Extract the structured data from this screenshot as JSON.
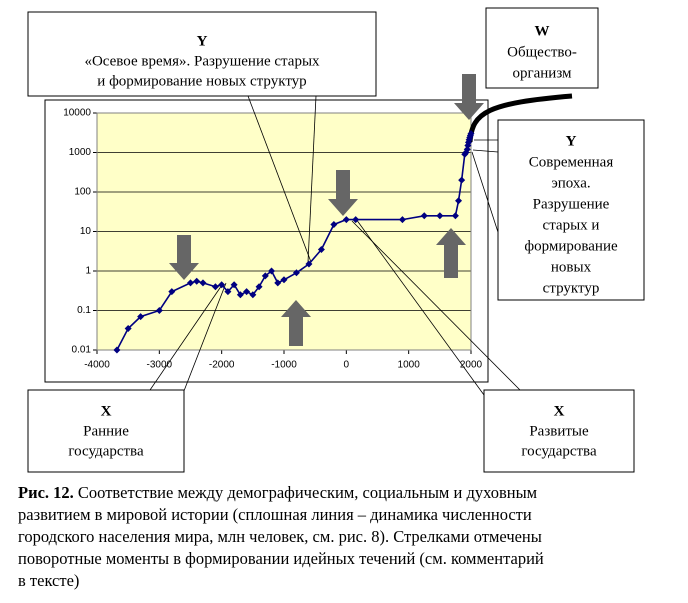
{
  "chart_data": {
    "type": "line",
    "log_scale": true,
    "grid": true,
    "color": "#000080",
    "x": [
      -3680,
      -3500,
      -3300,
      -3000,
      -2800,
      -2500,
      -2400,
      -2300,
      -2100,
      -2000,
      -1900,
      -1800,
      -1700,
      -1600,
      -1500,
      -1400,
      -1300,
      -1200,
      -1100,
      -1000,
      -800,
      -600,
      -400,
      -200,
      0,
      150,
      900,
      1250,
      1500,
      1750,
      1800,
      1850,
      1900,
      1920,
      1940,
      1950,
      1960,
      1970,
      1980,
      1990,
      2000
    ],
    "values": [
      0.01,
      0.035,
      0.07,
      0.1,
      0.3,
      0.5,
      0.55,
      0.5,
      0.4,
      0.45,
      0.3,
      0.45,
      0.25,
      0.3,
      0.25,
      0.4,
      0.75,
      1,
      0.5,
      0.6,
      0.9,
      1.5,
      3.5,
      15,
      20,
      20,
      20,
      25,
      25,
      25,
      60,
      200,
      900,
      1000,
      1200,
      1500,
      1800,
      2100,
      2400,
      2700,
      3000
    ],
    "xlim": [
      -4000,
      2000
    ],
    "xticks": [
      -4000,
      -3000,
      -2000,
      -1000,
      0,
      1000,
      2000
    ],
    "ylim": [
      0.01,
      10000
    ],
    "yticks": [
      0.01,
      0.1,
      1,
      10,
      100,
      1000,
      10000
    ],
    "annotations": [
      {
        "title": "Y",
        "lines": [
          "«Осевое время». Разрушение старых",
          "и формирование новых структур"
        ]
      },
      {
        "title": "W",
        "lines": [
          "Общество-",
          "организм"
        ]
      },
      {
        "title": "Y",
        "lines": [
          "Современная",
          "эпоха.",
          "Разрушение",
          "старых и",
          "формирование",
          "новых",
          "структур"
        ]
      },
      {
        "title": "X",
        "lines": [
          "Ранние",
          "государства"
        ]
      },
      {
        "title": "X",
        "lines": [
          "Развитые",
          "государства"
        ]
      }
    ]
  },
  "caption": {
    "label": "Рис. 12.",
    "lines": [
      " Соответствие между демографическим, социальным и духовным",
      "развитием в мировой истории (сплошная линия – динамика численности",
      "городского населения мира, млн человек, см. рис. 8). Стрелками отмечены",
      "поворотные моменты в формировании идейных течений (см. комментарий",
      "в тексте)"
    ]
  }
}
